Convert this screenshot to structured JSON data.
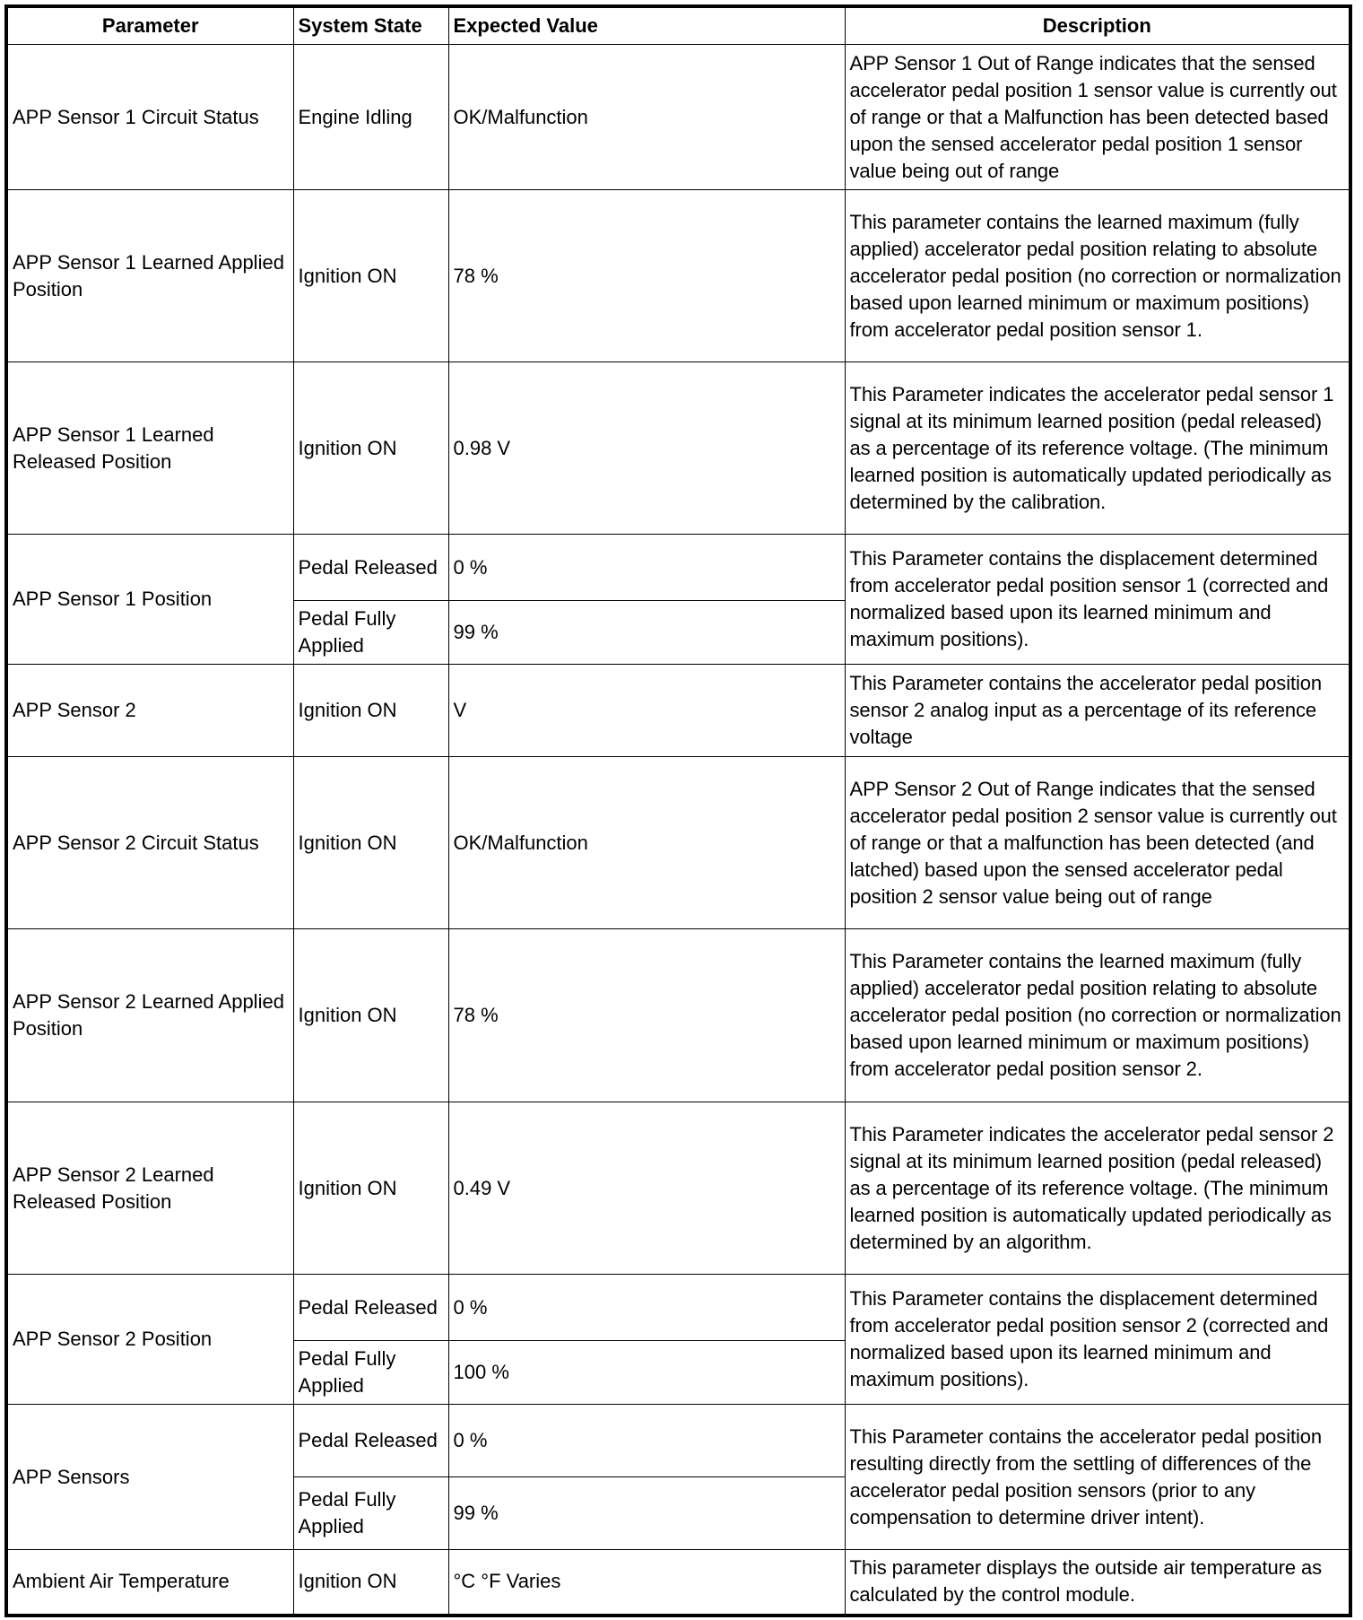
{
  "headers": {
    "parameter": "Parameter",
    "system_state": "System State",
    "expected_value": "Expected Value",
    "description": "Description"
  },
  "rows": [
    {
      "parameter": "APP Sensor 1 Circuit Status",
      "states": [
        {
          "state": "Engine Idling",
          "value": "OK/Malfunction"
        }
      ],
      "description": "APP Sensor 1 Out of Range indicates that the sensed accelerator pedal position 1 sensor value is currently out of range or that a Malfunction has been detected based upon the sensed accelerator pedal position 1 sensor value being out of range"
    },
    {
      "parameter": "APP Sensor 1 Learned Applied Position",
      "states": [
        {
          "state": "Ignition ON",
          "value": "78 %"
        }
      ],
      "description": "This parameter contains the learned maximum (fully applied) accelerator pedal position relating to absolute accelerator pedal position (no correction or normalization based upon learned minimum or maximum positions) from accelerator pedal position sensor 1."
    },
    {
      "parameter": "APP Sensor 1 Learned Released Position",
      "states": [
        {
          "state": "Ignition ON",
          "value": "0.98 V"
        }
      ],
      "description": "This Parameter indicates the accelerator pedal sensor 1 signal at its minimum learned position (pedal released) as a percentage of its reference voltage. (The minimum learned position is automatically updated periodically as determined by the calibration."
    },
    {
      "parameter": "APP Sensor 1 Position",
      "states": [
        {
          "state": "Pedal Released",
          "value": "0 %"
        },
        {
          "state": "Pedal Fully Applied",
          "value": "99 %"
        }
      ],
      "description": "This Parameter contains the displacement determined from accelerator pedal position sensor 1 (corrected and normalized based upon its learned minimum and maximum positions)."
    },
    {
      "parameter": "APP Sensor 2",
      "states": [
        {
          "state": "Ignition ON",
          "value": "V"
        }
      ],
      "description": "This Parameter contains the accelerator pedal position sensor 2 analog input as a percentage of its reference voltage"
    },
    {
      "parameter": "APP Sensor 2 Circuit Status",
      "states": [
        {
          "state": "Ignition ON",
          "value": "OK/Malfunction"
        }
      ],
      "description": "APP Sensor 2 Out of Range indicates that the sensed accelerator pedal position 2 sensor value is currently out of range or that a malfunction has been detected (and latched) based upon the sensed accelerator pedal position 2 sensor value being out of range"
    },
    {
      "parameter": "APP Sensor 2 Learned Applied Position",
      "states": [
        {
          "state": "Ignition ON",
          "value": "78 %"
        }
      ],
      "description": "This Parameter contains the learned maximum (fully applied) accelerator pedal position relating to absolute accelerator pedal position (no correction or normalization based upon learned minimum or maximum positions) from accelerator pedal position sensor 2."
    },
    {
      "parameter": "APP Sensor 2 Learned Released Position",
      "states": [
        {
          "state": "Ignition ON",
          "value": "0.49 V"
        }
      ],
      "description": "This Parameter indicates the accelerator pedal sensor 2 signal at its minimum learned position (pedal released) as a percentage of its reference voltage. (The minimum learned position is automatically updated periodically as determined by an algorithm."
    },
    {
      "parameter": "APP Sensor 2 Position",
      "states": [
        {
          "state": "Pedal Released",
          "value": "0 %"
        },
        {
          "state": "Pedal Fully Applied",
          "value": "100 %"
        }
      ],
      "description": "This Parameter contains the displacement determined from accelerator pedal position sensor 2 (corrected and normalized based upon its learned minimum and maximum positions)."
    },
    {
      "parameter": "APP Sensors",
      "states": [
        {
          "state": "Pedal Released",
          "value": "0 %"
        },
        {
          "state": "Pedal Fully Applied",
          "value": "99 %"
        }
      ],
      "description": "This Parameter contains the accelerator pedal position resulting directly from the settling of differences of the accelerator pedal position sensors (prior to any compensation to determine driver intent)."
    },
    {
      "parameter": "Ambient Air Temperature",
      "states": [
        {
          "state": "Ignition ON",
          "value": "°C °F Varies"
        }
      ],
      "description": "This parameter displays the outside air temperature as calculated by the control module."
    }
  ]
}
